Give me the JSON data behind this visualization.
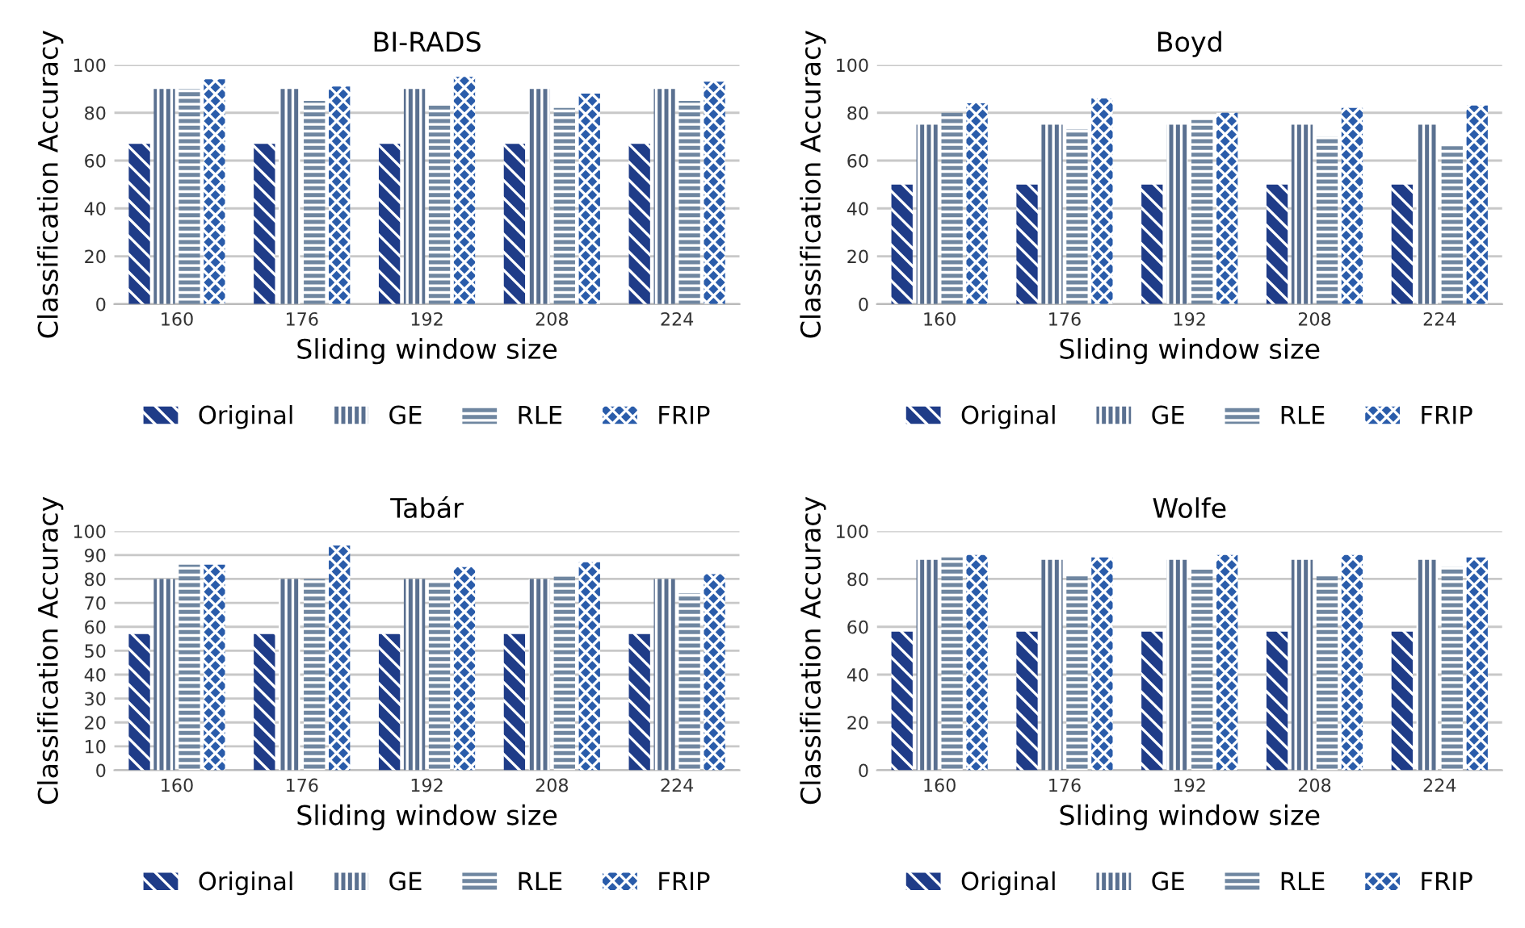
{
  "chart_data": [
    {
      "type": "bar",
      "title": "BI-RADS",
      "xlabel": "Sliding window size",
      "ylabel": "Classification Accuracy",
      "categories": [
        "160",
        "176",
        "192",
        "208",
        "224"
      ],
      "ylim": [
        0,
        100
      ],
      "yticks": [
        0,
        20,
        40,
        60,
        80,
        100
      ],
      "grid": "y",
      "legend": "bottom",
      "series": [
        {
          "name": "Original",
          "color": "#1f3c88",
          "values": [
            67,
            67,
            67,
            67,
            67
          ]
        },
        {
          "name": "GE",
          "color": "#5a7090",
          "values": [
            90,
            90,
            90,
            90,
            90
          ]
        },
        {
          "name": "RLE",
          "color": "#6f86a0",
          "values": [
            90,
            85,
            83,
            82,
            85
          ]
        },
        {
          "name": "FRIP",
          "color": "#2a5caa",
          "values": [
            94,
            91,
            95,
            88,
            93
          ]
        }
      ]
    },
    {
      "type": "bar",
      "title": "Boyd",
      "xlabel": "Sliding window size",
      "ylabel": "Classification Accuracy",
      "categories": [
        "160",
        "176",
        "192",
        "208",
        "224"
      ],
      "ylim": [
        0,
        100
      ],
      "yticks": [
        0,
        20,
        40,
        60,
        80,
        100
      ],
      "grid": "y",
      "legend": "bottom",
      "series": [
        {
          "name": "Original",
          "color": "#1f3c88",
          "values": [
            50,
            50,
            50,
            50,
            50
          ]
        },
        {
          "name": "GE",
          "color": "#5a7090",
          "values": [
            75,
            75,
            75,
            75,
            75
          ]
        },
        {
          "name": "RLE",
          "color": "#6f86a0",
          "values": [
            80,
            73,
            77,
            70,
            66
          ]
        },
        {
          "name": "FRIP",
          "color": "#2a5caa",
          "values": [
            84,
            86,
            80,
            82,
            83
          ]
        }
      ]
    },
    {
      "type": "bar",
      "title": "Tabár",
      "xlabel": "Sliding window size",
      "ylabel": "Classification Accuracy",
      "categories": [
        "160",
        "176",
        "192",
        "208",
        "224"
      ],
      "ylim": [
        0,
        100
      ],
      "yticks": [
        0,
        10,
        20,
        30,
        40,
        50,
        60,
        70,
        80,
        90,
        100
      ],
      "grid": "y",
      "legend": "bottom",
      "series": [
        {
          "name": "Original",
          "color": "#1f3c88",
          "values": [
            57,
            57,
            57,
            57,
            57
          ]
        },
        {
          "name": "GE",
          "color": "#5a7090",
          "values": [
            80,
            80,
            80,
            80,
            80
          ]
        },
        {
          "name": "RLE",
          "color": "#6f86a0",
          "values": [
            86,
            80,
            79,
            81,
            74
          ]
        },
        {
          "name": "FRIP",
          "color": "#2a5caa",
          "values": [
            86,
            94,
            85,
            87,
            82
          ]
        }
      ]
    },
    {
      "type": "bar",
      "title": "Wolfe",
      "xlabel": "Sliding window size",
      "ylabel": "Classification Accuracy",
      "categories": [
        "160",
        "176",
        "192",
        "208",
        "224"
      ],
      "ylim": [
        0,
        100
      ],
      "yticks": [
        0,
        20,
        40,
        60,
        80,
        100
      ],
      "grid": "y",
      "legend": "bottom",
      "series": [
        {
          "name": "Original",
          "color": "#1f3c88",
          "values": [
            58,
            58,
            58,
            58,
            58
          ]
        },
        {
          "name": "GE",
          "color": "#5a7090",
          "values": [
            88,
            88,
            88,
            88,
            88
          ]
        },
        {
          "name": "RLE",
          "color": "#6f86a0",
          "values": [
            89,
            82,
            84,
            82,
            85
          ]
        },
        {
          "name": "FRIP",
          "color": "#2a5caa",
          "values": [
            90,
            89,
            90,
            90,
            89
          ]
        }
      ]
    }
  ]
}
